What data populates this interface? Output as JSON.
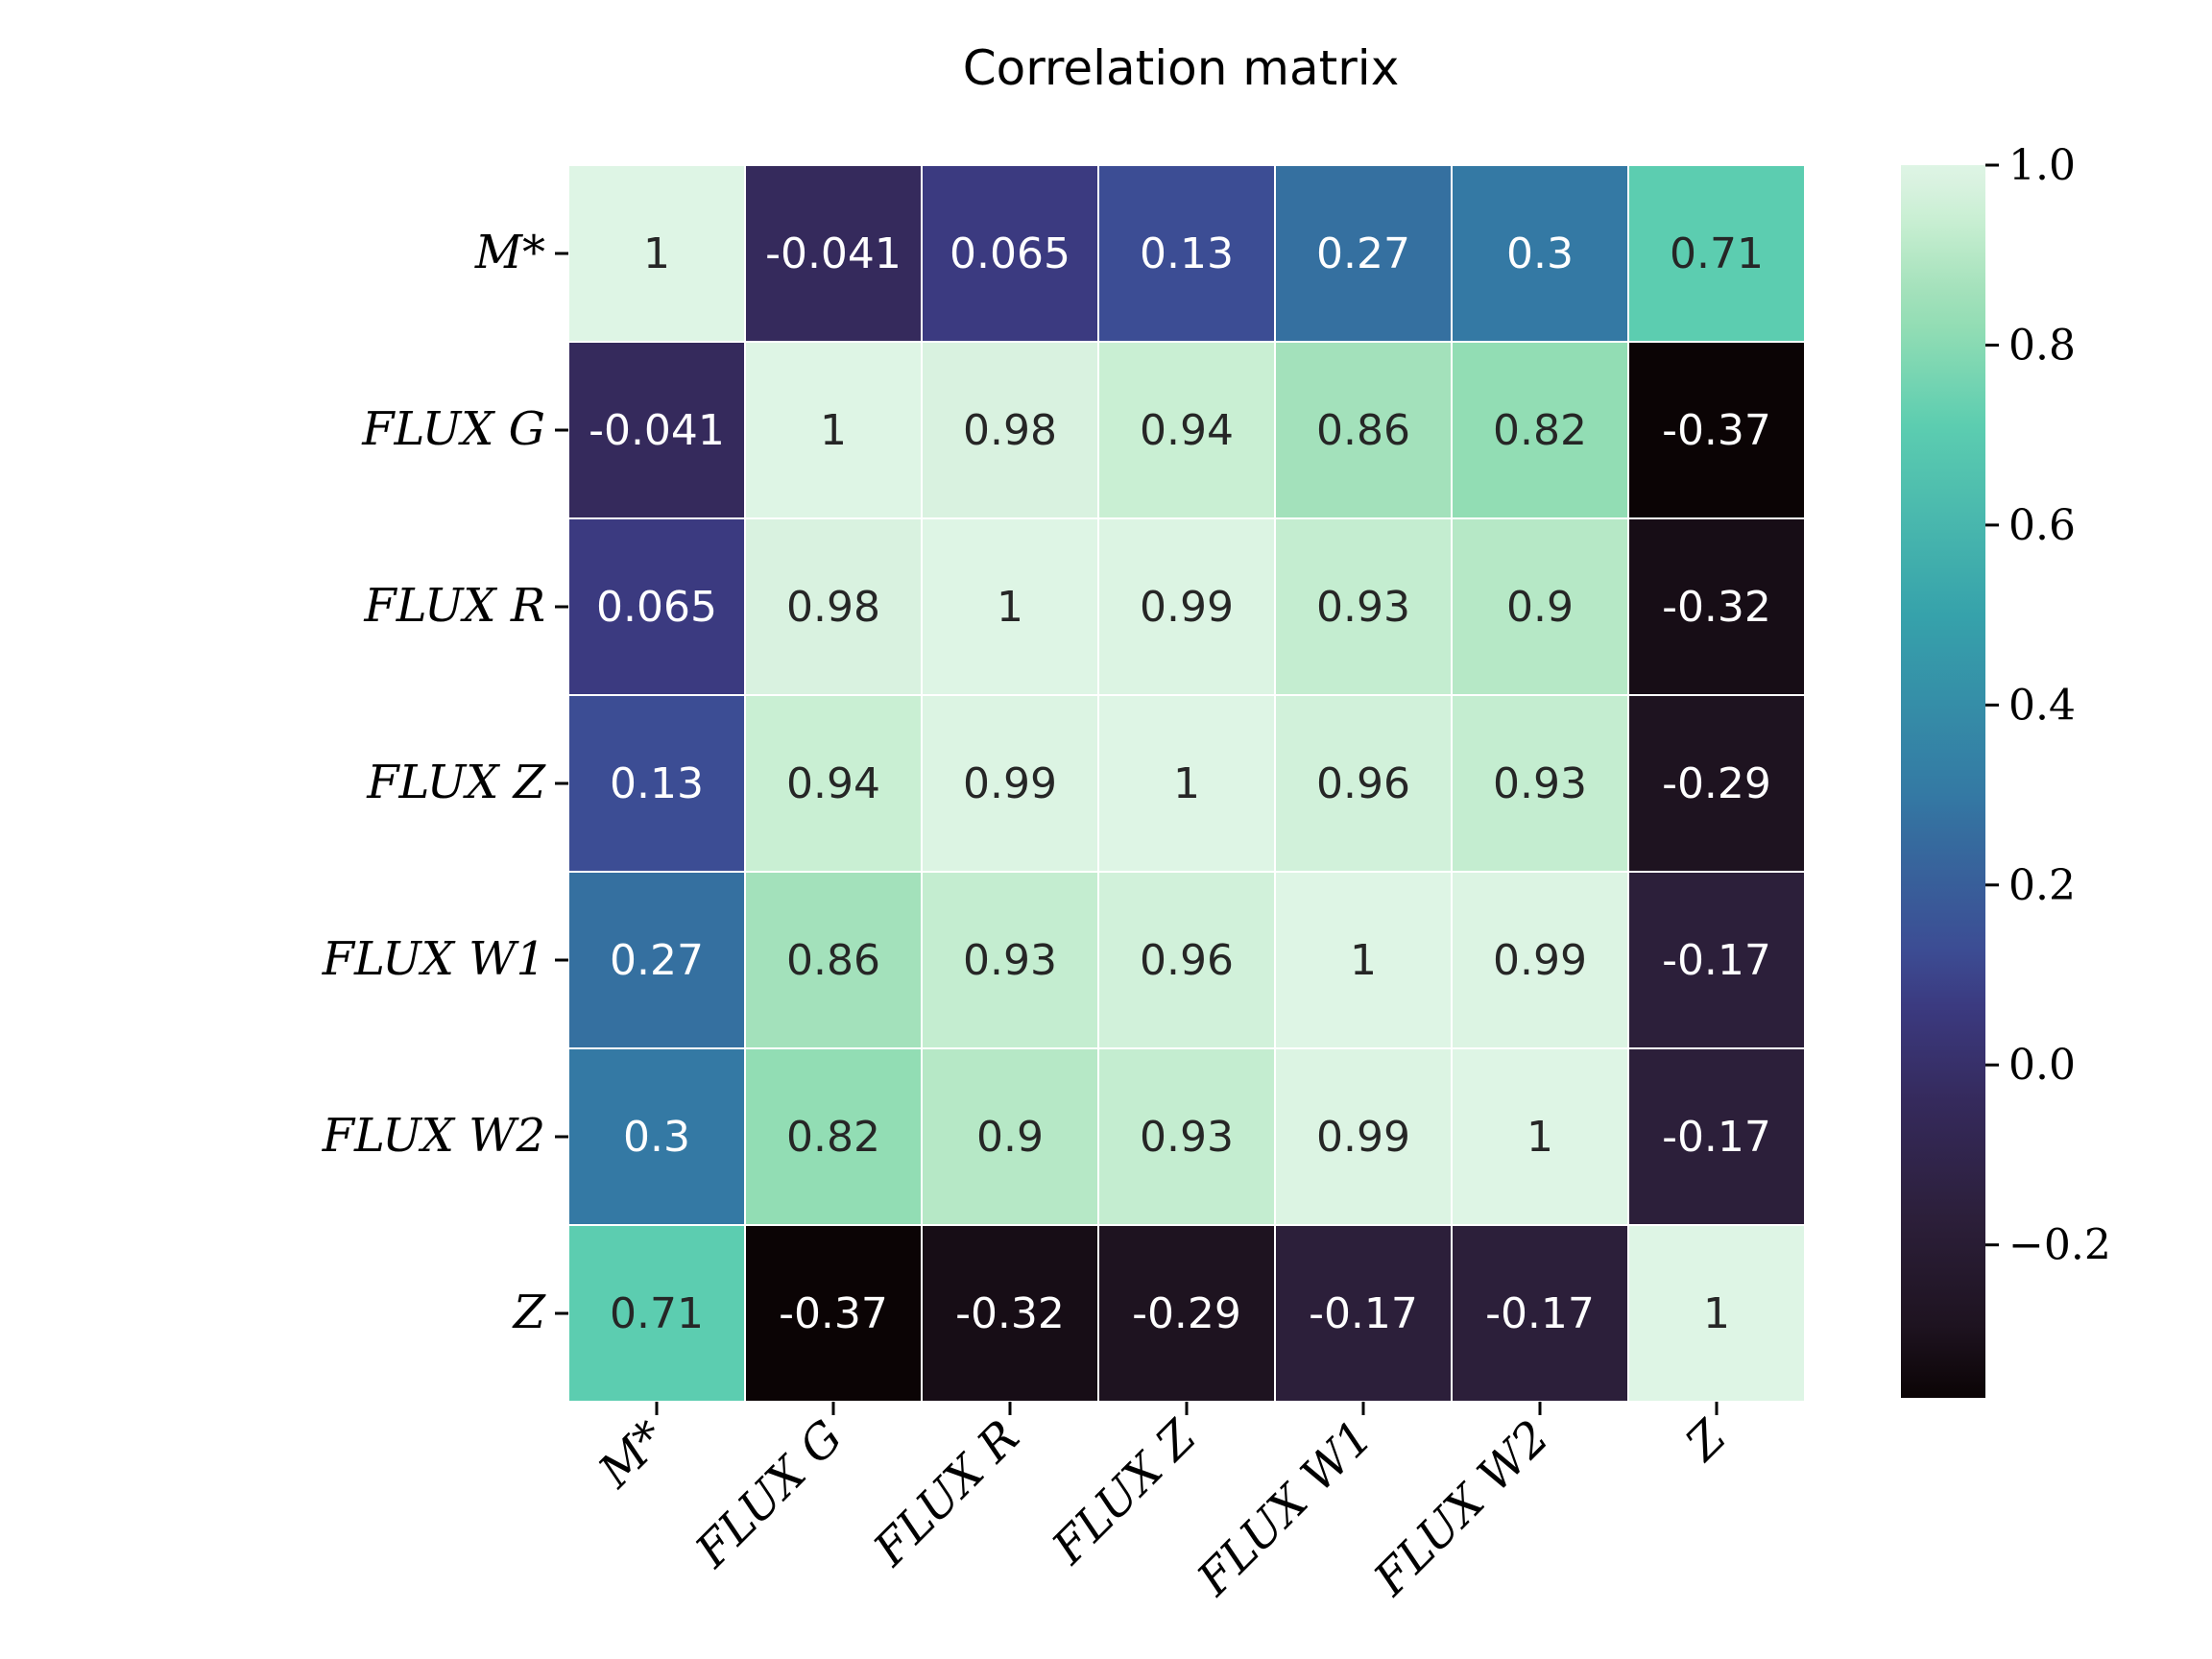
{
  "chart_data": {
    "type": "heatmap",
    "title": "Correlation matrix",
    "row_labels": [
      "M*",
      "FLUX G",
      "FLUX R",
      "FLUX Z",
      "FLUX W1",
      "FLUX W2",
      "Z"
    ],
    "col_labels": [
      "M*",
      "FLUX G",
      "FLUX R",
      "FLUX Z",
      "FLUX W1",
      "FLUX W2",
      "Z"
    ],
    "values": [
      [
        1,
        -0.041,
        0.065,
        0.13,
        0.27,
        0.3,
        0.71
      ],
      [
        -0.041,
        1,
        0.98,
        0.94,
        0.86,
        0.82,
        -0.37
      ],
      [
        0.065,
        0.98,
        1,
        0.99,
        0.93,
        0.9,
        -0.32
      ],
      [
        0.13,
        0.94,
        0.99,
        1,
        0.96,
        0.93,
        -0.29
      ],
      [
        0.27,
        0.86,
        0.93,
        0.96,
        1,
        0.99,
        -0.17
      ],
      [
        0.3,
        0.82,
        0.9,
        0.93,
        0.99,
        1,
        -0.17
      ],
      [
        0.71,
        -0.37,
        -0.32,
        -0.29,
        -0.17,
        -0.17,
        1
      ]
    ],
    "value_labels": [
      [
        "1",
        "-0.041",
        "0.065",
        "0.13",
        "0.27",
        "0.3",
        "0.71"
      ],
      [
        "-0.041",
        "1",
        "0.98",
        "0.94",
        "0.86",
        "0.82",
        "-0.37"
      ],
      [
        "0.065",
        "0.98",
        "1",
        "0.99",
        "0.93",
        "0.9",
        "-0.32"
      ],
      [
        "0.13",
        "0.94",
        "0.99",
        "1",
        "0.96",
        "0.93",
        "-0.29"
      ],
      [
        "0.27",
        "0.86",
        "0.93",
        "0.96",
        "1",
        "0.99",
        "-0.17"
      ],
      [
        "0.3",
        "0.82",
        "0.9",
        "0.93",
        "0.99",
        "1",
        "-0.17"
      ],
      [
        "0.71",
        "-0.37",
        "-0.32",
        "-0.29",
        "-0.17",
        "-0.17",
        "1"
      ]
    ],
    "colorbar": {
      "range": [
        -0.37,
        1.0
      ],
      "ticks": [
        -0.2,
        0.0,
        0.2,
        0.4,
        0.6,
        0.8,
        1.0
      ],
      "tick_labels": [
        "−0.2",
        "0.0",
        "0.2",
        "0.4",
        "0.6",
        "0.8",
        "1.0"
      ]
    },
    "colormap": "mako",
    "colormap_stops": [
      {
        "v": -0.37,
        "color": "#0b0405"
      },
      {
        "v": -0.29,
        "color": "#1e1320"
      },
      {
        "v": -0.17,
        "color": "#2c1f3a"
      },
      {
        "v": -0.041,
        "color": "#352a5c"
      },
      {
        "v": 0.065,
        "color": "#3b3a80"
      },
      {
        "v": 0.13,
        "color": "#3c4d94"
      },
      {
        "v": 0.27,
        "color": "#3570a0"
      },
      {
        "v": 0.3,
        "color": "#3479a4"
      },
      {
        "v": 0.5,
        "color": "#36a2ab"
      },
      {
        "v": 0.71,
        "color": "#5ccdb0"
      },
      {
        "v": 0.82,
        "color": "#92ddb4"
      },
      {
        "v": 0.86,
        "color": "#a3e1bb"
      },
      {
        "v": 0.9,
        "color": "#b6e8c6"
      },
      {
        "v": 0.94,
        "color": "#c9efd3"
      },
      {
        "v": 0.98,
        "color": "#d9f2e0"
      },
      {
        "v": 1.0,
        "color": "#def5e5"
      }
    ],
    "grid_line_color": "#ffffff"
  }
}
